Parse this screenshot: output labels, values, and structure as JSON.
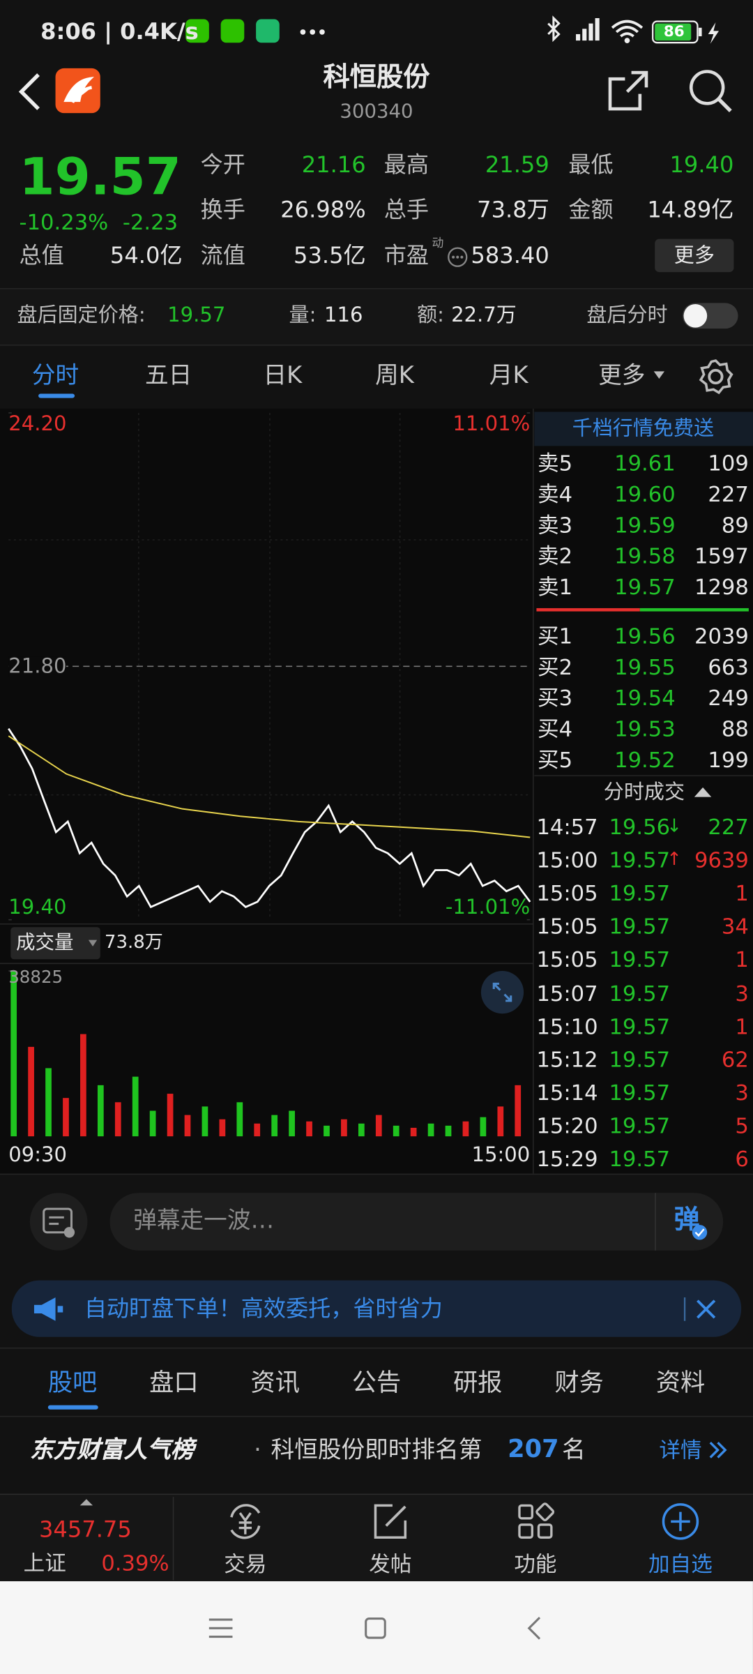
{
  "status_bar": {
    "time": "8:06 | 0.4K/s",
    "battery": "86"
  },
  "header": {
    "title": "科恒股份",
    "code": "300340"
  },
  "quote": {
    "price": "19.57",
    "change_pct": "-10.23%",
    "change": "-2.23",
    "fields": [
      {
        "label": "今开",
        "value": "21.16"
      },
      {
        "label": "最高",
        "value": "21.59"
      },
      {
        "label": "最低",
        "value": "19.40"
      },
      {
        "label": "换手",
        "value": "26.98%"
      },
      {
        "label": "总手",
        "value": "73.8万"
      },
      {
        "label": "金额",
        "value": "14.89亿"
      },
      {
        "label": "总值",
        "value": "54.0亿"
      },
      {
        "label": "流值",
        "value": "53.5亿"
      },
      {
        "label": "市盈",
        "value": "583.40",
        "note": "动"
      }
    ],
    "more": "更多"
  },
  "after_hours": {
    "label": "盘后固定价格:",
    "price": "19.57",
    "volume_label": "量:",
    "volume": "116",
    "amount_label": "额:",
    "amount": "22.7万",
    "chart_label": "盘后分时"
  },
  "tabs": [
    "分时",
    "五日",
    "日K",
    "周K",
    "月K",
    "更多"
  ],
  "chart_data": [
    {
      "type": "line",
      "ylim": [
        19.4,
        24.2
      ],
      "yticks": [
        {
          "value": 24.2,
          "label": "24.20"
        },
        {
          "value": 21.8,
          "label": "21.80"
        },
        {
          "value": 19.4,
          "label": "19.40"
        }
      ],
      "y2lim": [
        -11.01,
        11.01
      ],
      "y2ticks": [
        {
          "value": 11.01,
          "label": "11.01%"
        },
        {
          "value": -11.01,
          "label": "-11.01%"
        }
      ],
      "series": [
        {
          "color": "#ffffff",
          "values": [
            21.21,
            21.04,
            20.83,
            20.53,
            20.23,
            20.33,
            20.03,
            20.13,
            19.93,
            19.82,
            19.62,
            19.72,
            19.52,
            19.57,
            19.62,
            19.67,
            19.72,
            19.57,
            19.67,
            19.62,
            19.52,
            19.57,
            19.72,
            19.82,
            20.03,
            20.23,
            20.33,
            20.48,
            20.23,
            20.33,
            20.23,
            20.08,
            20.03,
            19.93,
            20.03,
            19.72,
            19.87,
            19.87,
            19.82,
            19.93,
            19.72,
            19.77,
            19.67,
            19.72,
            19.57
          ]
        },
        {
          "color": "#e8d44d",
          "values": [
            21.14,
            20.78,
            20.58,
            20.45,
            20.38,
            20.33,
            20.3,
            20.27,
            20.24,
            20.18
          ]
        }
      ]
    },
    {
      "type": "bar",
      "title": "成交量",
      "subtitle": "73.8万",
      "ylim": [
        0,
        38825
      ],
      "yticks": [
        38825
      ],
      "categories": [
        "09:30",
        null,
        null,
        null,
        null,
        null,
        null,
        null,
        null,
        null,
        null,
        null,
        null,
        null,
        null,
        null,
        null,
        null,
        null,
        null,
        null,
        null,
        null,
        null,
        null,
        null,
        null,
        null,
        null,
        "15:00"
      ],
      "values": [
        38825,
        21000,
        16000,
        9000,
        24000,
        12000,
        8000,
        14000,
        6000,
        10000,
        5000,
        7000,
        4000,
        8000,
        3000,
        5000,
        6000,
        3500,
        2500,
        4000,
        3000,
        5000,
        2500,
        2000,
        3000,
        2500,
        3500,
        4500,
        7000,
        12000
      ],
      "colors": [
        "#1fc41f",
        "#e02020",
        "#1fc41f",
        "#e02020",
        "#e02020",
        "#1fc41f",
        "#e02020",
        "#1fc41f",
        "#1fc41f",
        "#e02020",
        "#e02020",
        "#1fc41f",
        "#e02020",
        "#1fc41f",
        "#e02020",
        "#1fc41f",
        "#1fc41f",
        "#e02020",
        "#1fc41f",
        "#e02020",
        "#1fc41f",
        "#e02020",
        "#1fc41f",
        "#e02020",
        "#1fc41f",
        "#1fc41f",
        "#e02020",
        "#1fc41f",
        "#e02020",
        "#e02020"
      ]
    }
  ],
  "order_book": {
    "title": "千档行情免费送",
    "asks": [
      {
        "label": "卖5",
        "price": "19.61",
        "volume": "109"
      },
      {
        "label": "卖4",
        "price": "19.60",
        "volume": "227"
      },
      {
        "label": "卖3",
        "price": "19.59",
        "volume": "89"
      },
      {
        "label": "卖2",
        "price": "19.58",
        "volume": "1597"
      },
      {
        "label": "卖1",
        "price": "19.57",
        "volume": "1298"
      }
    ],
    "bids": [
      {
        "label": "买1",
        "price": "19.56",
        "volume": "2039"
      },
      {
        "label": "买2",
        "price": "19.55",
        "volume": "663"
      },
      {
        "label": "买3",
        "price": "19.54",
        "volume": "249"
      },
      {
        "label": "买4",
        "price": "19.53",
        "volume": "88"
      },
      {
        "label": "买5",
        "price": "19.52",
        "volume": "199"
      }
    ],
    "trades_title": "分时成交",
    "trades": [
      {
        "time": "14:57",
        "price": "19.56",
        "arrow": "↓",
        "volume": "227"
      },
      {
        "time": "15:00",
        "price": "19.57",
        "arrow": "↑",
        "volume": "9639"
      },
      {
        "time": "15:05",
        "price": "19.57",
        "volume": "1"
      },
      {
        "time": "15:05",
        "price": "19.57",
        "volume": "34"
      },
      {
        "time": "15:05",
        "price": "19.57",
        "volume": "1"
      },
      {
        "time": "15:07",
        "price": "19.57",
        "volume": "3"
      },
      {
        "time": "15:10",
        "price": "19.57",
        "volume": "1"
      },
      {
        "time": "15:12",
        "price": "19.57",
        "volume": "62"
      },
      {
        "time": "15:14",
        "price": "19.57",
        "volume": "3"
      },
      {
        "time": "15:20",
        "price": "19.57",
        "volume": "5"
      },
      {
        "time": "15:29",
        "price": "19.57",
        "volume": "6"
      }
    ]
  },
  "comment_box": {
    "placeholder": "弹幕走一波…",
    "button": "弹"
  },
  "banner": "自动盯盘下单！高效委托，省时省力",
  "section_tabs": [
    "股吧",
    "盘口",
    "资讯",
    "公告",
    "研报",
    "财务",
    "资料"
  ],
  "ranking": {
    "brand": "东方财富人气榜",
    "separator": "·",
    "text": "科恒股份即时排名第",
    "rank": "207",
    "suffix": "名",
    "link": "详情"
  },
  "bottom_nav": {
    "index_value": "3457.75",
    "index_name": "上证",
    "index_change": "0.39%",
    "items": [
      "交易",
      "发帖",
      "功能",
      "加自选"
    ]
  }
}
